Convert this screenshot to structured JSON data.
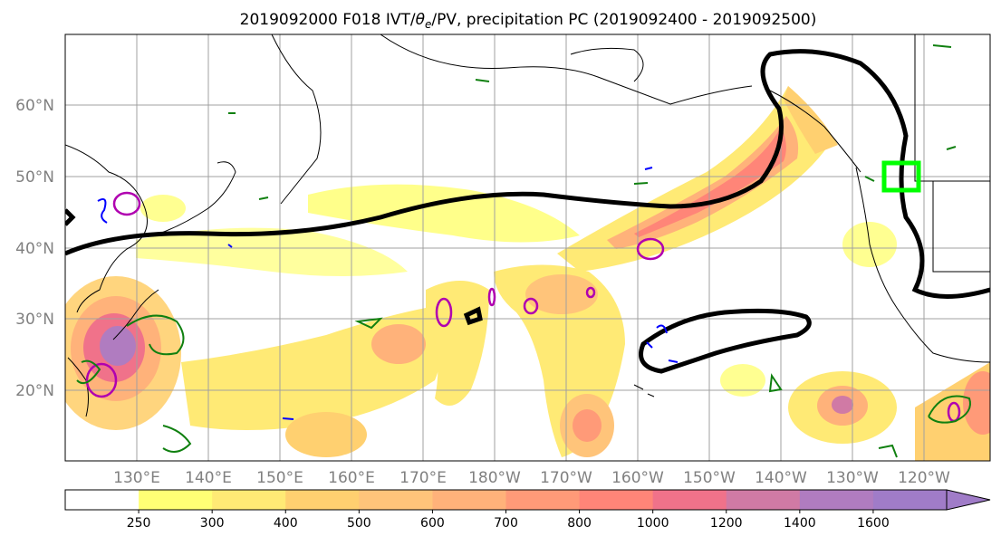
{
  "map": {
    "title_prefix": "2019092000 F018 IVT/",
    "title_theta": "θ",
    "title_sub": "e",
    "title_suffix": "/PV, precipitation PC (2019092400 - 2019092500)",
    "lat_labels": [
      "60°N",
      "50°N",
      "40°N",
      "30°N",
      "20°N"
    ],
    "lon_labels": [
      "130°E",
      "140°E",
      "150°E",
      "160°E",
      "170°E",
      "180°W",
      "170°W",
      "160°W",
      "150°W",
      "140°W",
      "130°W",
      "120°W"
    ],
    "colorbar": {
      "ticks": [
        "250",
        "300",
        "400",
        "500",
        "600",
        "700",
        "800",
        "1000",
        "1200",
        "1400",
        "1600"
      ],
      "colors": [
        "#ffffff",
        "#ffff75",
        "#ffea75",
        "#ffd070",
        "#ffc47a",
        "#ffb27a",
        "#ff9a78",
        "#ff8578",
        "#f0728a",
        "#d07aa5",
        "#b07cc0",
        "#a07cc8"
      ]
    },
    "colors": {
      "ivt_low": "#ffff75",
      "ivt_mid": "#ffc47a",
      "ivt_high": "#ff8578",
      "ivt_max": "#a07cc8",
      "pv_contour": "#b000b0",
      "precip_green": "#108010",
      "blue_contour": "#0000ff",
      "theta_e_contour": "#000000",
      "target_box": "#00ff00"
    }
  }
}
